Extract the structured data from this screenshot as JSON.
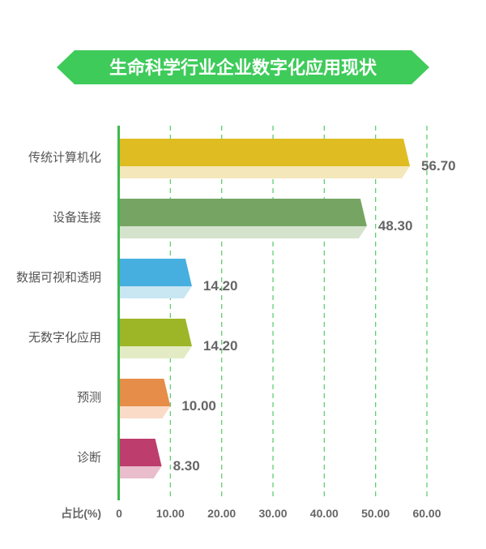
{
  "chart_data": {
    "type": "bar",
    "orientation": "horizontal",
    "title": "生命科学行业企业数字化应用现状",
    "xlabel": "占比(%)",
    "xlim": [
      0,
      60
    ],
    "xticks": [
      "0",
      "10.00",
      "20.00",
      "30.00",
      "40.00",
      "50.00",
      "60.00"
    ],
    "grid": true,
    "categories": [
      "传统计算机化",
      "设备连接",
      "数据可视和透明",
      "无数字化应用",
      "预测",
      "诊断"
    ],
    "values": [
      56.7,
      48.3,
      14.2,
      14.2,
      10.0,
      8.3
    ],
    "value_labels": [
      "56.70",
      "48.30",
      "14.20",
      "14.20",
      "10.00",
      "8.30"
    ],
    "colors": [
      {
        "main": "#dfbd22",
        "light": "#f4e7b9"
      },
      {
        "main": "#76a563",
        "light": "#d5e3cd"
      },
      {
        "main": "#46afdf",
        "light": "#c9e6f3"
      },
      {
        "main": "#9cb628",
        "light": "#e3ebc4"
      },
      {
        "main": "#e68d49",
        "light": "#f9dbc7"
      },
      {
        "main": "#bd3d6c",
        "light": "#e9bdcc"
      }
    ],
    "accent": "#3ecb5a"
  }
}
